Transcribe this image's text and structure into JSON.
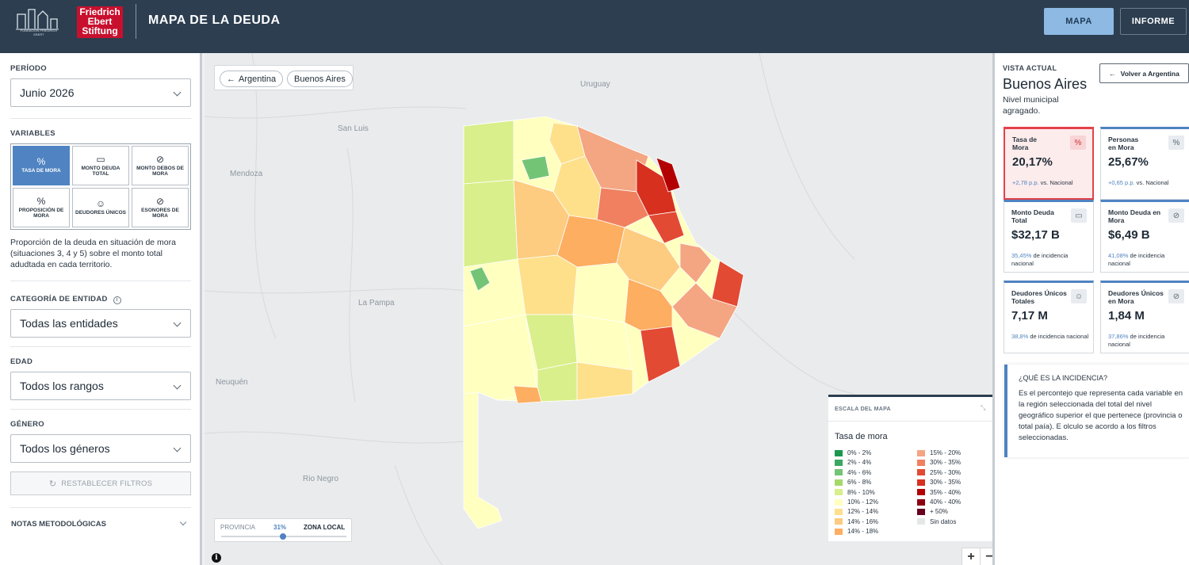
{
  "header": {
    "logo1_text": "FUNDACION FRIEDRICH EBERT",
    "logo2_text": "Friedrich Ebert Stiftung",
    "title": "MAPA DE LA DEUDA",
    "nav": [
      {
        "label": "MAPA",
        "active": true
      },
      {
        "label": "INFORME",
        "active": false
      }
    ]
  },
  "left": {
    "period_label": "PERÍODO",
    "period_value": "Junio 2026",
    "variables_label": "VARIABLES",
    "variables": [
      {
        "label": "TASA DE MORA",
        "icon": "percent-icon",
        "active": true
      },
      {
        "label": "MONTO DEUDA TOTAL",
        "icon": "money-icon",
        "active": false
      },
      {
        "label": "MONTO DEBOS DE MORA",
        "icon": "money-off-icon",
        "active": false
      },
      {
        "label": "PROPOSICIÓN DE MORA",
        "icon": "percent-icon",
        "active": false
      },
      {
        "label": "DEUDORES ÚNICOS",
        "icon": "people-icon",
        "active": false
      },
      {
        "label": "ESONORES DE MORA",
        "icon": "people-off-icon",
        "active": false
      }
    ],
    "description": "Proporción de la deuda en situación de mora (situaciones 3, 4 y 5) sobre el monto total adudtada en cada territorio.",
    "entity_label": "CATEGORÍA DE ENTIDAD",
    "entity_value": "Todas las entidades",
    "age_label": "EDAD",
    "age_value": "Todos los rangos",
    "gender_label": "GÉNERO",
    "gender_value": "Todos los géneros",
    "reset_label": "RESTABLECER FILTROS",
    "notes_label": "NOTAS METODOLÓGICAS"
  },
  "map": {
    "breadcrumb": {
      "back_label": "Argentina",
      "current_label": "Buenos Aires"
    },
    "cities": [
      "Uruguay",
      "San Luis",
      "Mendoza",
      "La Pampa",
      "Neuquén",
      "Rio Negro"
    ],
    "slider": {
      "left_label": "PROVINCIA",
      "value": "31%",
      "right_label": "ZONA LOCAL",
      "fraction": 0.42
    },
    "legend": {
      "title_small": "ESCALA DEL MAPA",
      "title": "Tasa de mora",
      "items": [
        {
          "label": "0% - 2%",
          "color": "#1a9850"
        },
        {
          "label": "2% - 4%",
          "color": "#3aa861"
        },
        {
          "label": "4% - 6%",
          "color": "#74c476"
        },
        {
          "label": "6% - 8%",
          "color": "#a6d96a"
        },
        {
          "label": "8% - 10%",
          "color": "#d9ef8b"
        },
        {
          "label": "10% - 12%",
          "color": "#ffffbf"
        },
        {
          "label": "12% - 14%",
          "color": "#fee08b"
        },
        {
          "label": "14% - 16%",
          "color": "#fdcc80"
        },
        {
          "label": "14% - 18%",
          "color": "#fdae61"
        },
        {
          "label": "15% - 20%",
          "color": "#f4a582"
        },
        {
          "label": "30% - 35%",
          "color": "#f08060"
        },
        {
          "label": "25% - 30%",
          "color": "#e34a33"
        },
        {
          "label": "30% - 35%",
          "color": "#d7301f"
        },
        {
          "label": "35% - 40%",
          "color": "#b30000"
        },
        {
          "label": "40% - 40%",
          "color": "#8c0011"
        },
        {
          "label": "+ 50%",
          "color": "#67001f"
        },
        {
          "label": "Sin datos",
          "color": "#e4e6e8"
        }
      ]
    },
    "zoom": {
      "in": "+",
      "out": "−"
    },
    "info_icon": "i"
  },
  "right": {
    "view_label": "VISTA ACTUAL",
    "region_name": "Buenos Aires",
    "level_text": "Nivel municipal agragado.",
    "back_button": "Volver a Argentina",
    "cards": [
      {
        "title": "Tasa de Mora",
        "value": "20,17%",
        "delta": "+2,78 p.p.",
        "sub": "vs. Nacional",
        "icon": "percent-icon",
        "active": true
      },
      {
        "title": "Personas en Mora",
        "value": "25,67%",
        "delta": "+0,65 p.p.",
        "sub": "vs. Nacional",
        "icon": "percent-icon",
        "active": false
      },
      {
        "title": "Monto Deuda Total",
        "value": "$32,17 B",
        "delta": "35,45%",
        "sub": "de incidencia nacional",
        "icon": "money-icon",
        "active": false
      },
      {
        "title": "Monto Deuda en Mora",
        "value": "$6,49 B",
        "delta": "41,08%",
        "sub": "de incidencia nacional",
        "icon": "money-off-icon",
        "active": false
      },
      {
        "title": "Deudores Únicos Totales",
        "value": "7,17 M",
        "delta": "38,8%",
        "sub": "de incidencia nacional",
        "icon": "people-icon",
        "active": false
      },
      {
        "title": "Deudores Únicos en Mora",
        "value": "1,84 M",
        "delta": "37,86%",
        "sub": "de incidencia nacional",
        "icon": "people-off-icon",
        "active": false
      }
    ],
    "info_title": "¿QUÉ ES LA INCIDENCIA?",
    "info_text": "Es el percontejo que representa cada variable en la región seleccionada del total del nivel geográfico superior el que pertenece (provincia o total paía). E olculo se acordo a los filtros seleccionadas."
  }
}
